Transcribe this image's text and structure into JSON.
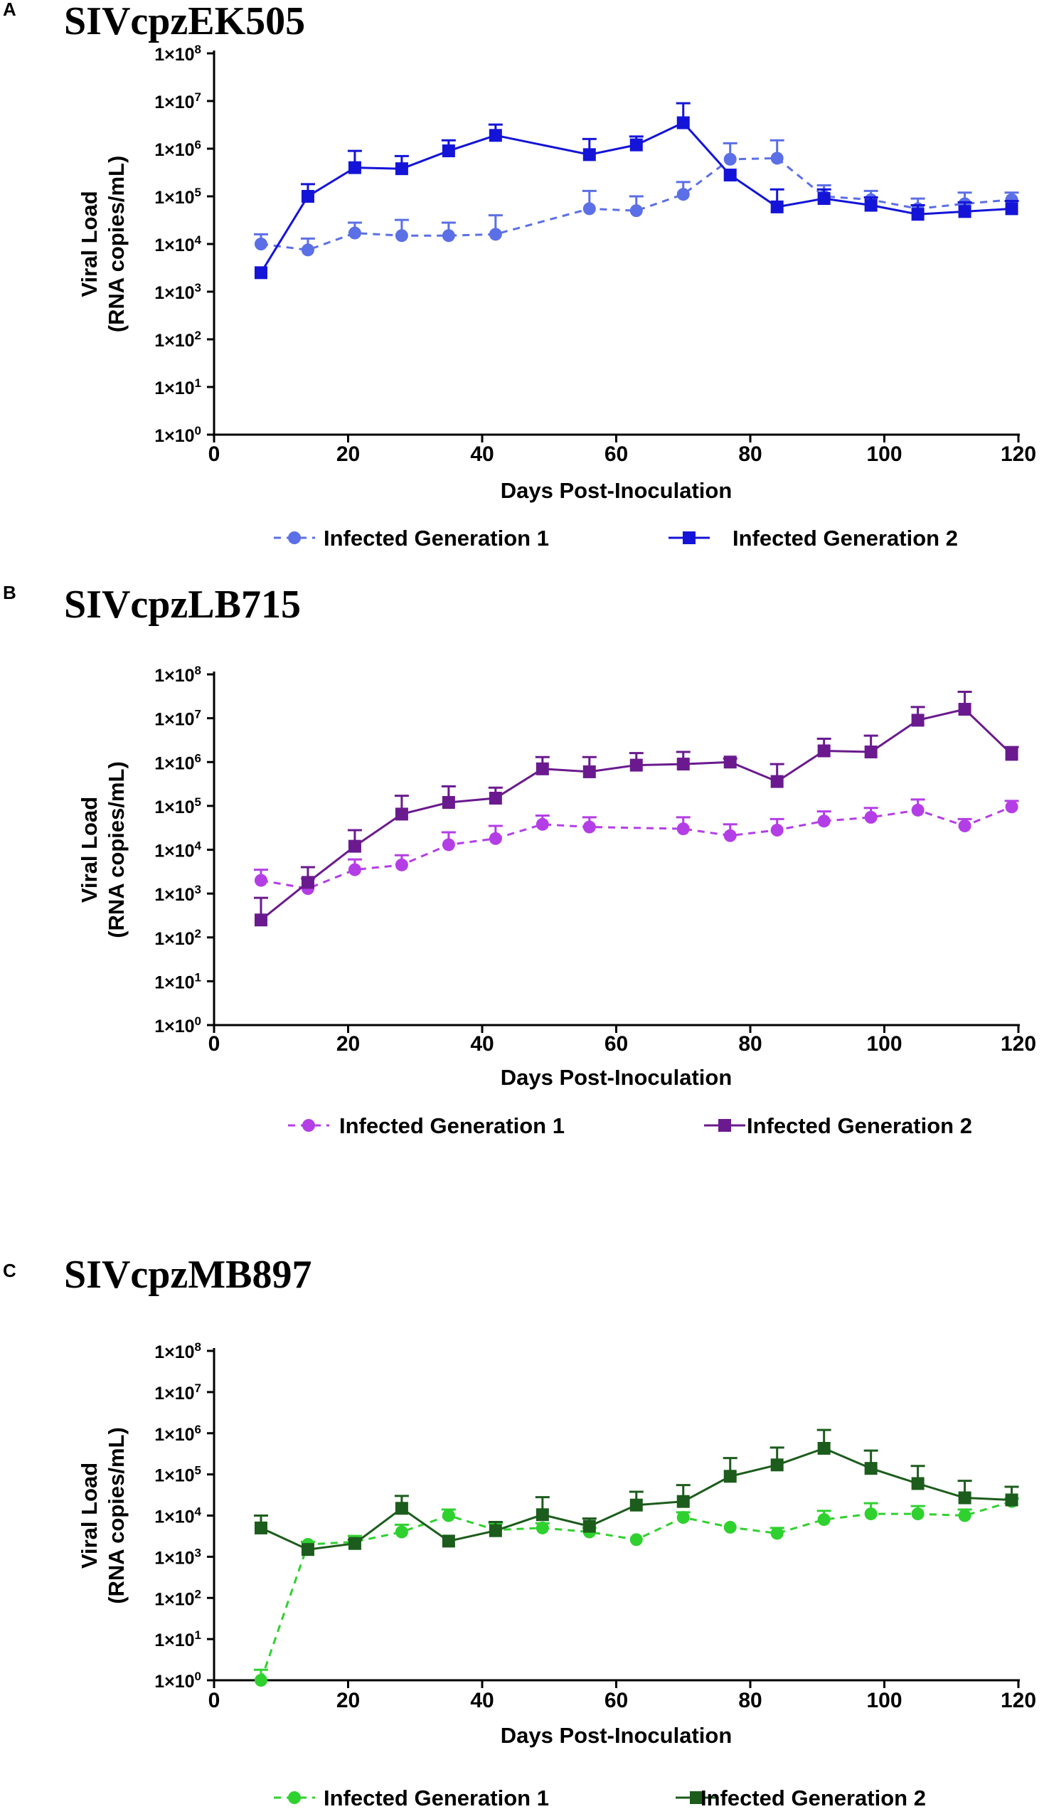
{
  "chart_data": [
    {
      "type": "line",
      "panel_letter": "A",
      "title": "SIVcpzEK505",
      "xlabel": "Days Post-Inoculation",
      "ylabel": [
        "Viral Load",
        "(RNA copies/mL)"
      ],
      "xlim": [
        0,
        120
      ],
      "xticks": [
        "0",
        "20",
        "40",
        "60",
        "80",
        "100",
        "120"
      ],
      "ylim_log10": [
        0,
        8
      ],
      "yticks": [
        {
          "exp": 0,
          "label": "1×10",
          "sup": "0"
        },
        {
          "exp": 1,
          "label": "1×10",
          "sup": "1"
        },
        {
          "exp": 2,
          "label": "1×10",
          "sup": "2"
        },
        {
          "exp": 3,
          "label": "1×10",
          "sup": "3"
        },
        {
          "exp": 4,
          "label": "1×10",
          "sup": "4"
        },
        {
          "exp": 5,
          "label": "1×10",
          "sup": "5"
        },
        {
          "exp": 6,
          "label": "1×10",
          "sup": "6"
        },
        {
          "exp": 7,
          "label": "1×10",
          "sup": "7"
        },
        {
          "exp": 8,
          "label": "1×10",
          "sup": "8"
        }
      ],
      "series": [
        {
          "name": "Infected Generation 1",
          "marker": "circle",
          "dashed": true,
          "color": "#5b6fe6",
          "x": [
            7,
            14,
            21,
            28,
            35,
            42,
            56,
            63,
            70,
            77,
            84,
            91,
            98,
            105,
            112,
            119
          ],
          "values": [
            10000,
            7500,
            17000,
            15000,
            15000,
            16000,
            55000,
            50000,
            110000,
            600000,
            630000,
            100000,
            85000,
            55000,
            70000,
            85000
          ],
          "err_upper": [
            16000,
            13000,
            28000,
            32000,
            28000,
            40000,
            130000,
            100000,
            200000,
            1300000,
            1500000,
            170000,
            130000,
            90000,
            120000,
            120000
          ]
        },
        {
          "name": "Infected Generation 2",
          "marker": "square",
          "dashed": false,
          "color": "#1414d8",
          "x": [
            7,
            14,
            21,
            28,
            35,
            42,
            56,
            63,
            70,
            77,
            84,
            91,
            98,
            105,
            112,
            119
          ],
          "values": [
            2500,
            100000,
            400000,
            380000,
            900000,
            1900000,
            750000,
            1200000,
            3500000,
            280000,
            60000,
            90000,
            65000,
            42000,
            48000,
            55000
          ],
          "err_upper": [
            2500,
            180000,
            900000,
            700000,
            1500000,
            3200000,
            1600000,
            1800000,
            9000000,
            280000,
            140000,
            140000,
            95000,
            65000,
            75000,
            80000
          ]
        }
      ],
      "legend": [
        "Infected Generation 1",
        "Infected Generation 2"
      ]
    },
    {
      "type": "line",
      "panel_letter": "B",
      "title": "SIVcpzLB715",
      "xlabel": "Days Post-Inoculation",
      "ylabel": [
        "Viral Load",
        "(RNA copies/mL)"
      ],
      "xlim": [
        0,
        120
      ],
      "xticks": [
        "0",
        "20",
        "40",
        "60",
        "80",
        "100",
        "120"
      ],
      "ylim_log10": [
        0,
        8
      ],
      "yticks": [
        {
          "exp": 0,
          "label": "1×10",
          "sup": "0"
        },
        {
          "exp": 1,
          "label": "1×10",
          "sup": "1"
        },
        {
          "exp": 2,
          "label": "1×10",
          "sup": "2"
        },
        {
          "exp": 3,
          "label": "1×10",
          "sup": "3"
        },
        {
          "exp": 4,
          "label": "1×10",
          "sup": "4"
        },
        {
          "exp": 5,
          "label": "1×10",
          "sup": "5"
        },
        {
          "exp": 6,
          "label": "1×10",
          "sup": "6"
        },
        {
          "exp": 7,
          "label": "1×10",
          "sup": "7"
        },
        {
          "exp": 8,
          "label": "1×10",
          "sup": "8"
        }
      ],
      "series": [
        {
          "name": "Infected  Generation 1",
          "marker": "circle",
          "dashed": true,
          "color": "#b43ee6",
          "x": [
            7,
            14,
            21,
            28,
            35,
            42,
            49,
            56,
            70,
            77,
            84,
            91,
            98,
            105,
            112,
            119
          ],
          "values": [
            2000,
            1300,
            3500,
            4500,
            13000,
            18000,
            38000,
            33000,
            30000,
            21000,
            28000,
            45000,
            55000,
            80000,
            35000,
            95000
          ],
          "err_upper": [
            3500,
            2200,
            6000,
            7500,
            25000,
            35000,
            60000,
            55000,
            55000,
            38000,
            50000,
            75000,
            90000,
            140000,
            50000,
            130000
          ]
        },
        {
          "name": "Infected Generation 2",
          "marker": "square",
          "dashed": false,
          "color": "#6a1a8e",
          "x": [
            7,
            14,
            21,
            28,
            35,
            42,
            49,
            56,
            63,
            70,
            77,
            84,
            91,
            98,
            105,
            112,
            119
          ],
          "values": [
            250,
            1800,
            12000,
            65000,
            120000,
            150000,
            700000,
            600000,
            850000,
            900000,
            1000000,
            360000,
            1800000,
            1700000,
            9000000,
            16000000,
            1500000
          ],
          "err_upper": [
            800,
            4000,
            28000,
            170000,
            280000,
            260000,
            1300000,
            1300000,
            1600000,
            1700000,
            1200000,
            900000,
            3400000,
            4000000,
            18000000,
            40000000,
            2200000
          ]
        }
      ],
      "legend": [
        "Infected  Generation 1",
        "Infected Generation 2"
      ]
    },
    {
      "type": "line",
      "panel_letter": "C",
      "title": "SIVcpzMB897",
      "xlabel": "Days Post-Inoculation",
      "ylabel": [
        "Viral Load",
        "(RNA copies/mL)"
      ],
      "xlim": [
        0,
        120
      ],
      "xticks": [
        "0",
        "20",
        "40",
        "60",
        "80",
        "100",
        "120"
      ],
      "ylim_log10": [
        0,
        8
      ],
      "yticks": [
        {
          "exp": 0,
          "label": "1×10",
          "sup": "0"
        },
        {
          "exp": 1,
          "label": "1×10",
          "sup": "1"
        },
        {
          "exp": 2,
          "label": "1×10",
          "sup": "2"
        },
        {
          "exp": 3,
          "label": "1×10",
          "sup": "3"
        },
        {
          "exp": 4,
          "label": "1×10",
          "sup": "4"
        },
        {
          "exp": 5,
          "label": "1×10",
          "sup": "5"
        },
        {
          "exp": 6,
          "label": "1×10",
          "sup": "6"
        },
        {
          "exp": 7,
          "label": "1×10",
          "sup": "7"
        },
        {
          "exp": 8,
          "label": "1×10",
          "sup": "8"
        }
      ],
      "series": [
        {
          "name": "Infected Generation 1",
          "marker": "circle",
          "dashed": true,
          "color": "#2fd12f",
          "x": [
            7,
            14,
            21,
            28,
            35,
            42,
            49,
            56,
            63,
            70,
            77,
            84,
            91,
            98,
            105,
            112,
            119
          ],
          "values": [
            1,
            2000,
            2300,
            4000,
            10000,
            4500,
            5000,
            4000,
            2600,
            9000,
            5200,
            3700,
            8000,
            11000,
            11000,
            10000,
            22000
          ],
          "err_upper": [
            1.8,
            2300,
            3200,
            6000,
            14000,
            6500,
            6500,
            5000,
            2600,
            12000,
            5200,
            5000,
            13000,
            20000,
            17000,
            14000,
            26000
          ]
        },
        {
          "name": "Infected Generation 2",
          "marker": "square",
          "dashed": false,
          "color": "#1c5c1c",
          "x": [
            7,
            14,
            21,
            28,
            35,
            42,
            49,
            56,
            63,
            70,
            77,
            84,
            91,
            98,
            105,
            112,
            119
          ],
          "values": [
            5000,
            1500,
            2100,
            15000,
            2400,
            4300,
            10500,
            5500,
            18000,
            22000,
            90000,
            170000,
            430000,
            140000,
            60000,
            27000,
            24000
          ],
          "err_upper": [
            10000,
            1500,
            2600,
            30000,
            2400,
            7000,
            28000,
            8500,
            38000,
            55000,
            250000,
            450000,
            1200000,
            380000,
            160000,
            70000,
            50000
          ]
        }
      ],
      "legend": [
        "Infected Generation 1",
        "Infected Generation 2"
      ]
    }
  ]
}
